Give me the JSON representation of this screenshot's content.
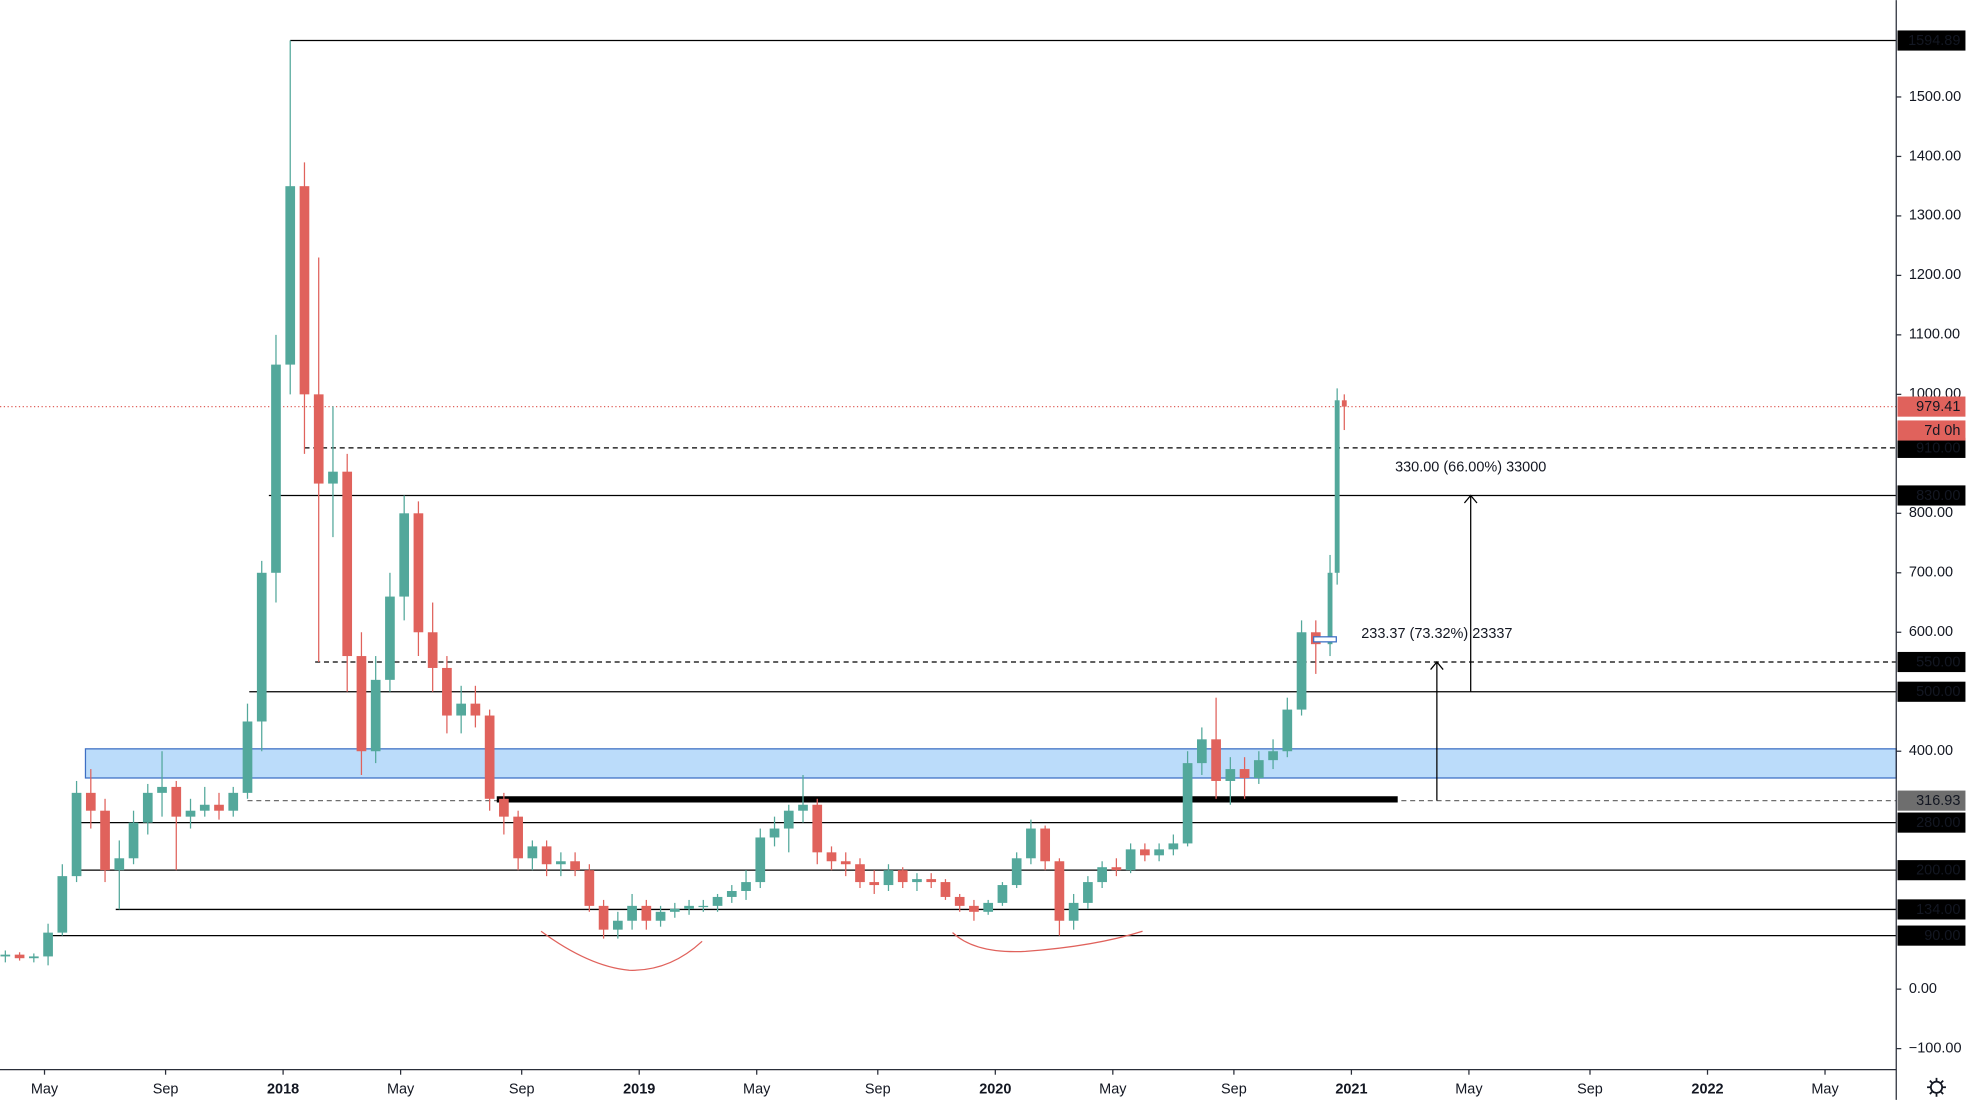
{
  "chart_data": {
    "type": "candlestick",
    "x": [
      2017.22,
      2017.26,
      2017.3,
      2017.34,
      2017.38,
      2017.42,
      2017.46,
      2017.5,
      2017.54,
      2017.58,
      2017.62,
      2017.66,
      2017.7,
      2017.74,
      2017.78,
      2017.82,
      2017.86,
      2017.9,
      2017.94,
      2017.98,
      2018.02,
      2018.06,
      2018.1,
      2018.14,
      2018.18,
      2018.22,
      2018.26,
      2018.3,
      2018.34,
      2018.38,
      2018.42,
      2018.46,
      2018.5,
      2018.54,
      2018.58,
      2018.62,
      2018.66,
      2018.7,
      2018.74,
      2018.78,
      2018.82,
      2018.86,
      2018.9,
      2018.94,
      2018.98,
      2019.02,
      2019.06,
      2019.1,
      2019.14,
      2019.18,
      2019.22,
      2019.26,
      2019.3,
      2019.34,
      2019.38,
      2019.42,
      2019.46,
      2019.5,
      2019.54,
      2019.58,
      2019.62,
      2019.66,
      2019.7,
      2019.74,
      2019.78,
      2019.82,
      2019.86,
      2019.9,
      2019.94,
      2019.98,
      2020.02,
      2020.06,
      2020.1,
      2020.14,
      2020.18,
      2020.22,
      2020.26,
      2020.3,
      2020.34,
      2020.38,
      2020.42,
      2020.46,
      2020.5,
      2020.54,
      2020.58,
      2020.62,
      2020.66,
      2020.7,
      2020.74,
      2020.78,
      2020.82,
      2020.86,
      2020.9,
      2020.94,
      2020.96,
      2020.98
    ],
    "open": [
      55,
      58,
      52,
      55,
      95,
      190,
      330,
      300,
      200,
      220,
      280,
      330,
      340,
      290,
      300,
      310,
      300,
      330,
      450,
      700,
      1050,
      1350,
      1000,
      850,
      870,
      560,
      400,
      520,
      660,
      800,
      600,
      540,
      460,
      480,
      460,
      320,
      290,
      220,
      240,
      210,
      215,
      200,
      140,
      100,
      115,
      140,
      115,
      130,
      135,
      140,
      140,
      155,
      165,
      180,
      255,
      270,
      300,
      310,
      230,
      215,
      210,
      180,
      175,
      200,
      180,
      185,
      180,
      155,
      140,
      130,
      145,
      175,
      220,
      270,
      215,
      115,
      145,
      180,
      205,
      200,
      235,
      225,
      235,
      245,
      380,
      420,
      350,
      370,
      355,
      385,
      400,
      470,
      600,
      580,
      700,
      990
    ],
    "high": [
      65,
      62,
      60,
      110,
      210,
      350,
      370,
      320,
      250,
      300,
      345,
      400,
      350,
      320,
      340,
      330,
      340,
      480,
      720,
      1100,
      1594.89,
      1390,
      1230,
      980,
      900,
      600,
      560,
      700,
      830,
      820,
      650,
      560,
      510,
      510,
      470,
      330,
      300,
      250,
      250,
      230,
      230,
      210,
      150,
      130,
      160,
      150,
      140,
      145,
      150,
      150,
      160,
      175,
      200,
      270,
      290,
      310,
      360,
      320,
      240,
      230,
      220,
      200,
      210,
      205,
      195,
      195,
      185,
      160,
      150,
      150,
      180,
      230,
      285,
      275,
      220,
      160,
      190,
      215,
      220,
      245,
      245,
      245,
      260,
      400,
      440,
      490,
      390,
      390,
      400,
      420,
      490,
      620,
      620,
      730,
      1010,
      1000
    ],
    "low": [
      45,
      48,
      45,
      40,
      90,
      180,
      270,
      180,
      134,
      210,
      260,
      290,
      200,
      270,
      290,
      285,
      290,
      320,
      400,
      650,
      1000,
      900,
      550,
      760,
      500,
      360,
      380,
      500,
      620,
      560,
      500,
      430,
      430,
      440,
      300,
      260,
      200,
      200,
      190,
      190,
      190,
      130,
      85,
      85,
      100,
      100,
      105,
      120,
      125,
      130,
      130,
      145,
      150,
      170,
      240,
      230,
      280,
      210,
      200,
      190,
      170,
      160,
      165,
      170,
      165,
      170,
      150,
      130,
      115,
      125,
      140,
      170,
      210,
      200,
      90,
      100,
      135,
      170,
      190,
      195,
      215,
      215,
      225,
      240,
      360,
      320,
      310,
      320,
      345,
      370,
      390,
      460,
      530,
      560,
      680,
      940
    ],
    "close": [
      58,
      52,
      55,
      95,
      190,
      330,
      300,
      200,
      220,
      280,
      330,
      340,
      290,
      300,
      310,
      300,
      330,
      450,
      700,
      1050,
      1350,
      1000,
      850,
      870,
      560,
      400,
      520,
      660,
      800,
      600,
      540,
      460,
      480,
      460,
      320,
      290,
      220,
      240,
      210,
      215,
      200,
      140,
      100,
      115,
      140,
      115,
      130,
      135,
      140,
      140,
      155,
      165,
      180,
      255,
      270,
      300,
      310,
      230,
      215,
      210,
      180,
      175,
      200,
      180,
      185,
      180,
      155,
      140,
      130,
      145,
      175,
      220,
      270,
      215,
      115,
      145,
      180,
      205,
      200,
      235,
      225,
      235,
      245,
      380,
      420,
      350,
      370,
      355,
      385,
      400,
      470,
      600,
      580,
      700,
      990,
      979.41
    ],
    "up_color": "#53a89b",
    "down_color": "#e0625c",
    "xlim": [
      2017.205,
      2022.53
    ],
    "xticks": [
      {
        "value": 2017.33,
        "label": "May"
      },
      {
        "value": 2017.67,
        "label": "Sep"
      },
      2018,
      {
        "value": 2018.33,
        "label": "May"
      },
      {
        "value": 2018.67,
        "label": "Sep"
      },
      2019,
      {
        "value": 2019.33,
        "label": "May"
      },
      {
        "value": 2019.67,
        "label": "Sep"
      },
      2020,
      {
        "value": 2020.33,
        "label": "May"
      },
      {
        "value": 2020.67,
        "label": "Sep"
      },
      2021,
      {
        "value": 2021.33,
        "label": "May"
      },
      {
        "value": 2021.67,
        "label": "Sep"
      },
      2022,
      {
        "value": 2022.33,
        "label": "May"
      }
    ],
    "ylim": [
      -135.4,
      1662.8
    ],
    "yticks": [
      {
        "value": -100,
        "label": "−100.00"
      },
      {
        "value": 0,
        "label": "0.00"
      },
      {
        "value": 400,
        "label": "400.00"
      },
      {
        "value": 600,
        "label": "600.00"
      },
      {
        "value": 700,
        "label": "700.00"
      },
      {
        "value": 800,
        "label": "800.00"
      },
      {
        "value": 1000,
        "label": "1000.00"
      },
      {
        "value": 1100,
        "label": "1100.00"
      },
      {
        "value": 1200,
        "label": "1200.00"
      },
      {
        "value": 1300,
        "label": "1300.00"
      },
      {
        "value": 1400,
        "label": "1400.00"
      },
      {
        "value": 1500,
        "label": "1500.00"
      }
    ],
    "levels": [
      {
        "value": 1594.89,
        "label": "1594.89",
        "from": 2018.02,
        "style": "solid",
        "color": "#000000"
      },
      {
        "value": 910,
        "label": "910.00",
        "from": 2018.06,
        "style": "dashed",
        "color": "#000000"
      },
      {
        "value": 830,
        "label": "830.00",
        "from": 2017.96,
        "style": "solid",
        "color": "#000000"
      },
      {
        "value": 550,
        "label": "550.00",
        "from": 2018.09,
        "style": "dashed",
        "color": "#000000"
      },
      {
        "value": 500,
        "label": "500.00",
        "from": 2017.905,
        "style": "solid",
        "color": "#000000"
      },
      {
        "value": 316.93,
        "label": "316.93",
        "from": 2017.9,
        "style": "dashed",
        "color": "#6e6e6e"
      },
      {
        "value": 280,
        "label": "280.00",
        "from": 2017.42,
        "style": "solid",
        "color": "#000000"
      },
      {
        "value": 200,
        "label": "200.00",
        "from": 2017.41,
        "style": "solid",
        "color": "#000000"
      },
      {
        "value": 134,
        "label": "134.00",
        "from": 2017.53,
        "style": "solid",
        "color": "#000000"
      },
      {
        "value": 90,
        "label": "90.00",
        "from": 2017.35,
        "style": "solid",
        "color": "#000000"
      }
    ],
    "current_price": {
      "value": 979.41,
      "label": "979.41",
      "color": "#e0625c"
    },
    "countdown": "7d 0h",
    "zone": {
      "low": 355,
      "high": 404,
      "from": 2017.445
    },
    "support_line": {
      "value": 319,
      "from": 2018.6,
      "to": 2021.13
    },
    "measures": [
      {
        "from": 500,
        "to": 830,
        "x": 2021.335,
        "label": "330.00 (66.00%) 33000"
      },
      {
        "from": 316.93,
        "to": 550,
        "x": 2021.24,
        "label": "233.37 (73.32%) 23337"
      }
    ]
  }
}
